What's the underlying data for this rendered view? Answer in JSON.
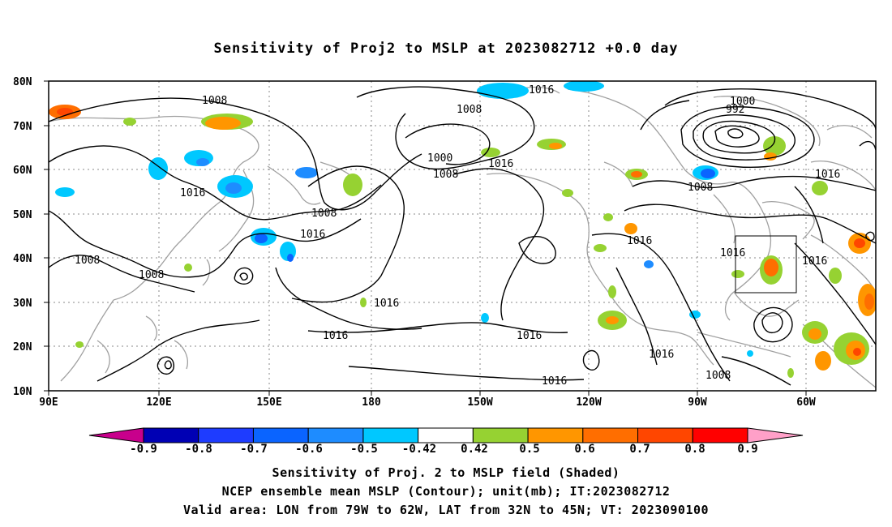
{
  "title": "Sensitivity of Proj2 to MSLP at 2023082712 +0.0 day",
  "map": {
    "lat_labels": [
      "80N",
      "70N",
      "60N",
      "50N",
      "40N",
      "30N",
      "20N",
      "10N"
    ],
    "lon_labels": [
      "90E",
      "120E",
      "150E",
      "180",
      "150W",
      "120W",
      "90W",
      "60W"
    ],
    "isobar_labels": [
      "1008",
      "1016",
      "1008",
      "1000",
      "992",
      "1016",
      "1008",
      "1016",
      "1000",
      "1008",
      "1016",
      "1008",
      "1016",
      "1016",
      "1008",
      "1016",
      "1016",
      "1016",
      "1016",
      "1016",
      "1008",
      "1016",
      "1008",
      "1016"
    ],
    "colors": {
      "coast": "#a0a0a0",
      "contour": "#000000",
      "grid": "#888888"
    }
  },
  "colorbar": {
    "labels": [
      "-0.9",
      "-0.8",
      "-0.7",
      "-0.6",
      "-0.5",
      "-0.42",
      "0.42",
      "0.5",
      "0.6",
      "0.7",
      "0.8",
      "0.9"
    ],
    "colors": [
      "#0000b4",
      "#1e3cff",
      "#0a64ff",
      "#1e8cff",
      "#00c8ff",
      "#ffffff",
      "#96d232",
      "#ff9600",
      "#ff6e00",
      "#ff4600",
      "#ff0000"
    ],
    "left_arrow_color": "#c8008c",
    "right_arrow_color": "#ffa0c8"
  },
  "captions": {
    "line1": "Sensitivity of Proj. 2 to MSLP field (Shaded)",
    "line2": "NCEP ensemble mean MSLP (Contour); unit(mb); IT:2023082712",
    "line3": "Valid area: LON from 79W to 62W, LAT from 32N to 45N; VT: 2023090100"
  }
}
